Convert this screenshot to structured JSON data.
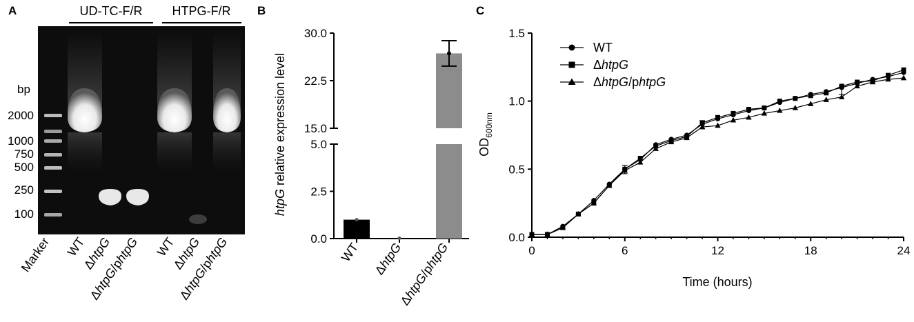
{
  "panels": {
    "a": {
      "letter": "A"
    },
    "b": {
      "letter": "B"
    },
    "c": {
      "letter": "C"
    }
  },
  "gel": {
    "group_labels": [
      "UD-TC-F/R",
      "HTPG-F/R"
    ],
    "unit_label": "bp",
    "ladder_sizes": [
      "2000",
      "1000",
      "750",
      "500",
      "250",
      "100"
    ],
    "lanes": [
      {
        "label": "Marker"
      },
      {
        "label_prefix": "",
        "label_italic": "",
        "label": "WT"
      },
      {
        "label_prefix": "Δ",
        "label_italic": "htpG",
        "label_suffix": ""
      },
      {
        "label_prefix": "Δ",
        "label_italic": "htpG",
        "label_suffix": "/p",
        "label_italic2": "htpG"
      },
      {
        "label": "WT"
      },
      {
        "label_prefix": "Δ",
        "label_italic": "htpG",
        "label_suffix": ""
      },
      {
        "label_prefix": "Δ",
        "label_italic": "htpG",
        "label_suffix": "/p",
        "label_italic2": "htpG"
      }
    ]
  },
  "chart_data": [
    {
      "id": "B",
      "type": "bar",
      "categories": [
        {
          "prefix": "",
          "italic": "",
          "text": "WT"
        },
        {
          "prefix": "Δ",
          "italic": "htpG",
          "text": ""
        },
        {
          "prefix": "Δ",
          "italic": "htpG",
          "text": "/p",
          "italic2": "htpG"
        }
      ],
      "values": [
        1.0,
        0.02,
        26.8
      ],
      "error": [
        0.0,
        0.0,
        2.0
      ],
      "bar_colors": [
        "#000000",
        "#000000",
        "#8c8c8c"
      ],
      "ylabel_italic": "htpG",
      "ylabel_rest": " relative expression level",
      "axis_break": {
        "lower": [
          0,
          5.0
        ],
        "upper": [
          15.0,
          30.0
        ]
      },
      "yticks_lower": [
        "0.0",
        "2.5",
        "5.0"
      ],
      "yticks_upper": [
        "15.0",
        "22.5",
        "30.0"
      ]
    },
    {
      "id": "C",
      "type": "line",
      "xlabel": "Time  (hours)",
      "ylabel_main": "OD",
      "ylabel_sub": "600nm",
      "xlim": [
        0,
        24
      ],
      "ylim": [
        0,
        1.5
      ],
      "xticks": [
        0,
        6,
        12,
        18,
        24
      ],
      "yticks": [
        "0.0",
        "0.5",
        "1.0",
        "1.5"
      ],
      "legend_position": "top-left",
      "x": [
        0,
        1,
        2,
        3,
        4,
        5,
        6,
        7,
        8,
        9,
        10,
        11,
        12,
        13,
        14,
        15,
        16,
        17,
        18,
        19,
        20,
        21,
        22,
        23,
        24
      ],
      "series": [
        {
          "name_prefix": "",
          "name_italic": "",
          "name": "WT",
          "marker": "circle",
          "values": [
            0.02,
            0.02,
            0.08,
            0.17,
            0.27,
            0.39,
            0.5,
            0.57,
            0.68,
            0.72,
            0.75,
            0.83,
            0.87,
            0.9,
            0.93,
            0.95,
            0.99,
            1.02,
            1.05,
            1.07,
            1.1,
            1.13,
            1.16,
            1.18,
            1.21
          ]
        },
        {
          "name_prefix": "Δ",
          "name_italic": "htpG",
          "name": "",
          "marker": "square",
          "values": [
            0.02,
            0.02,
            0.07,
            0.17,
            0.25,
            0.38,
            0.5,
            0.58,
            0.67,
            0.71,
            0.74,
            0.84,
            0.88,
            0.91,
            0.94,
            0.95,
            1.0,
            1.02,
            1.04,
            1.06,
            1.11,
            1.14,
            1.15,
            1.19,
            1.23
          ]
        },
        {
          "name_prefix": "Δ",
          "name_italic": "htpG",
          "name": "/p",
          "name_italic2": "htpG",
          "marker": "triangle",
          "values": [
            0.02,
            0.02,
            0.07,
            0.17,
            0.25,
            0.38,
            0.49,
            0.55,
            0.65,
            0.7,
            0.73,
            0.81,
            0.82,
            0.86,
            0.88,
            0.91,
            0.93,
            0.95,
            0.98,
            1.01,
            1.03,
            1.11,
            1.14,
            1.16,
            1.17
          ]
        }
      ],
      "error_points": [
        {
          "x": 6,
          "err": 0.03
        },
        {
          "x": 11,
          "err": 0.03
        },
        {
          "x": 20,
          "err": 0.03
        }
      ]
    }
  ]
}
